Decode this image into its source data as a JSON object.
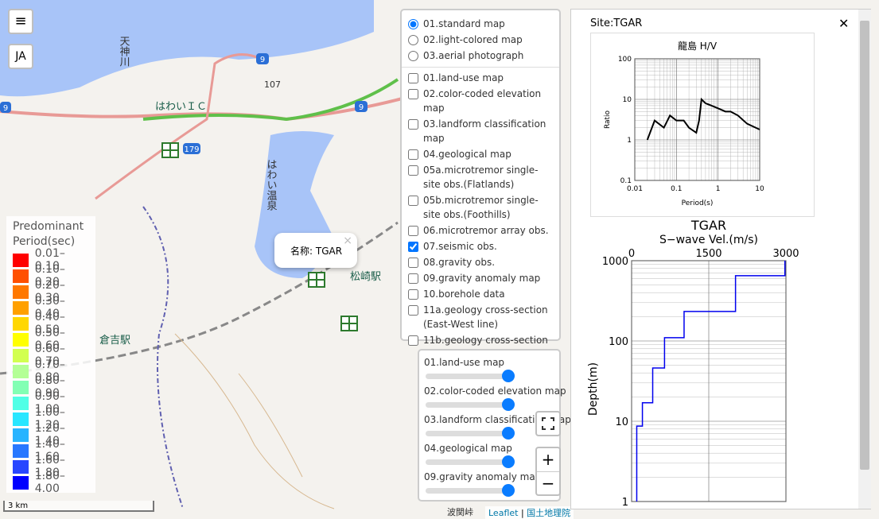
{
  "controls": {
    "menu": "≡",
    "language": "JA",
    "zoom_in": "+",
    "zoom_out": "−"
  },
  "map_labels": {
    "river": "天神川",
    "ic": "はわいＩＣ",
    "onsen": "はわい温泉",
    "matsuzaki": "松崎駅",
    "kurayoshi": "倉吉駅",
    "route9a": "9",
    "route9b": "9",
    "route9c": "9",
    "route179": "179",
    "peak": "107",
    "pass": "波関峠"
  },
  "popup": {
    "text": "名称: TGAR",
    "close": "×"
  },
  "legend": {
    "title": "Predominant Period(sec)",
    "items": [
      {
        "label": "0.01–0.10",
        "color": "#ff0000"
      },
      {
        "label": "0.10–0.20",
        "color": "#ff5000"
      },
      {
        "label": "0.20–0.30",
        "color": "#ff7800"
      },
      {
        "label": "0.30–0.40",
        "color": "#ffa000"
      },
      {
        "label": "0.40–0.50",
        "color": "#ffd700"
      },
      {
        "label": "0.50–0.60",
        "color": "#ffff00"
      },
      {
        "label": "0.60–0.70",
        "color": "#d2ff50"
      },
      {
        "label": "0.70–0.80",
        "color": "#b4ff96"
      },
      {
        "label": "0.80–0.90",
        "color": "#82ffb4"
      },
      {
        "label": "0.90–1.00",
        "color": "#50ffe6"
      },
      {
        "label": "1.00–1.20",
        "color": "#28e6ff"
      },
      {
        "label": "1.20–1.40",
        "color": "#28b4ff"
      },
      {
        "label": "1.40–1.60",
        "color": "#2878ff"
      },
      {
        "label": "1.60–1.80",
        "color": "#2846ff"
      },
      {
        "label": "1.80–4.00",
        "color": "#0000ff"
      }
    ]
  },
  "scale": "3 km",
  "base_layers": [
    {
      "label": "01.standard map",
      "checked": true
    },
    {
      "label": "02.light-colored map",
      "checked": false
    },
    {
      "label": "03.aerial photograph",
      "checked": false
    }
  ],
  "overlays": [
    {
      "label": "01.land-use map",
      "checked": false
    },
    {
      "label": "02.color-coded elevation map",
      "checked": false
    },
    {
      "label": "03.landform classification map",
      "checked": false
    },
    {
      "label": "04.geological map",
      "checked": false
    },
    {
      "label": "05a.microtremor single-site obs.(Flatlands)",
      "checked": false
    },
    {
      "label": "05b.microtremor single-site obs.(Foothills)",
      "checked": false
    },
    {
      "label": "06.microtremor array obs.",
      "checked": false
    },
    {
      "label": "07.seismic obs.",
      "checked": true
    },
    {
      "label": "08.gravity obs.",
      "checked": false
    },
    {
      "label": "09.gravity anomaly map",
      "checked": false
    },
    {
      "label": "10.borehole data",
      "checked": false
    },
    {
      "label": "11a.geology cross-section (East-West line)",
      "checked": false
    },
    {
      "label": "11b.geology cross-section (North-South line)",
      "checked": false
    }
  ],
  "opacity": [
    "01.land-use map",
    "02.color-coded elevation map",
    "03.landform classification map",
    "04.geological map",
    "09.gravity anomaly map"
  ],
  "attribution": {
    "links": [
      "Leaflet",
      "国土地理院"
    ],
    "separator": "|"
  },
  "panel": {
    "title": "Site:TGAR",
    "close": "✕"
  },
  "chart_data": [
    {
      "type": "line",
      "title": "龍島 H/V",
      "x_label": "Period(s)",
      "y_label": "Ratio",
      "log_x": true,
      "log_y": true,
      "grid": true,
      "x": [
        0.02,
        0.03,
        0.05,
        0.07,
        0.1,
        0.15,
        0.2,
        0.3,
        0.35,
        0.4,
        0.5,
        0.7,
        1,
        1.5,
        2,
        3,
        5,
        10
      ],
      "series": [
        {
          "color": "#000000",
          "values": [
            1,
            3,
            2,
            4,
            3,
            3,
            2,
            1.5,
            3,
            10,
            8,
            7,
            6,
            5,
            5,
            4,
            2.5,
            1.8
          ]
        }
      ],
      "xlim": [
        0.01,
        10
      ],
      "xticks": [
        0.01,
        0.1,
        1,
        10
      ],
      "ylim": [
        0.1,
        100
      ],
      "yticks": [
        0.1,
        1,
        10,
        100
      ]
    },
    {
      "type": "step",
      "title": "TGAR",
      "x_label": "S−wave Vel.(m/s)",
      "y_label": "Depth(m)",
      "log_y": true,
      "grid": true,
      "color": "#0000ee",
      "x": [
        100,
        100,
        210,
        210,
        410,
        410,
        640,
        640,
        1020,
        1020,
        2020,
        2020,
        2980,
        2980
      ],
      "values": [
        1,
        8.7,
        8.7,
        17,
        17,
        46,
        46,
        110,
        110,
        233,
        233,
        650,
        650,
        1000
      ],
      "xlim": [
        0,
        3000
      ],
      "xticks": [
        0,
        1500,
        3000
      ],
      "ylim": [
        1,
        1000
      ],
      "yticks": [
        1,
        10,
        100,
        1000
      ]
    }
  ]
}
